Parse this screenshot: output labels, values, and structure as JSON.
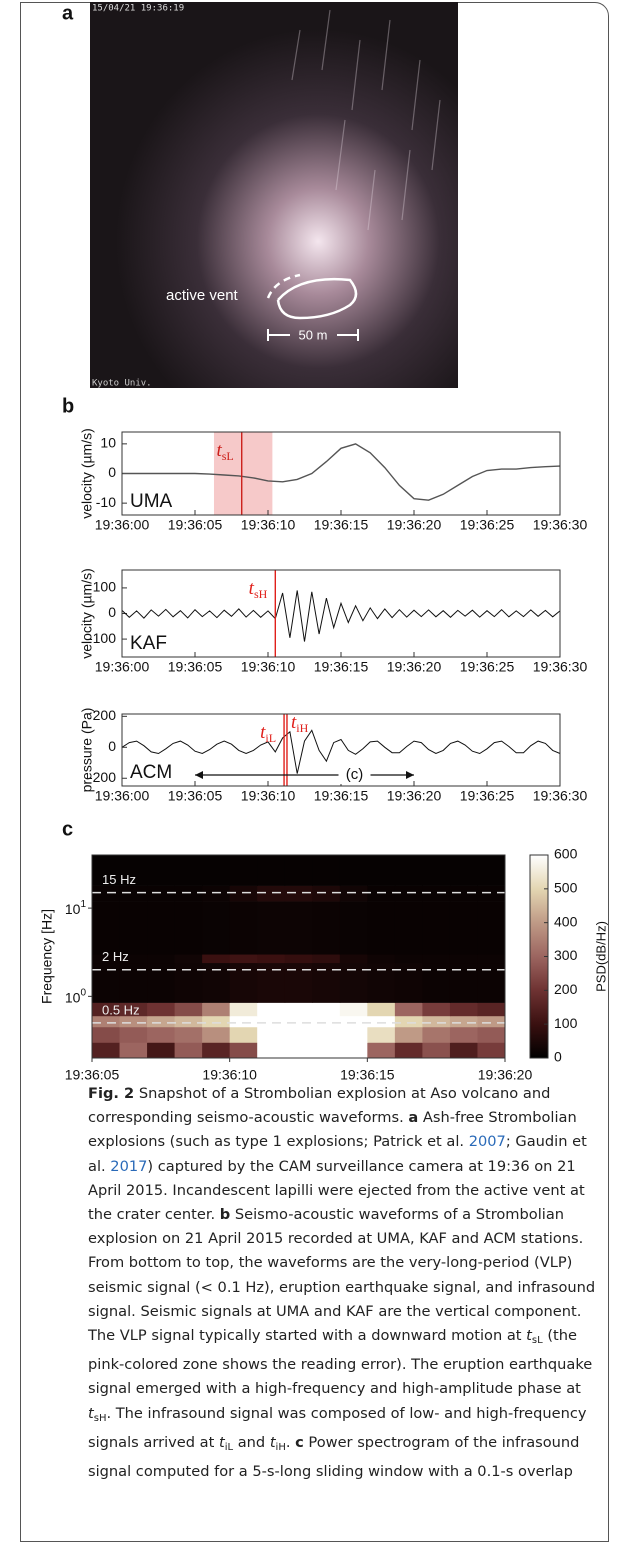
{
  "figure": {
    "panel_a": {
      "label": "a",
      "timestamp": "15/04/21 19:36:19",
      "credit": "Kyoto Univ.",
      "vent_label": "active vent",
      "scale_label": "50 m"
    },
    "panel_b": {
      "label": "b",
      "charts": [
        {
          "type": "line",
          "station": "UMA",
          "ylabel": "velocity (µm/s)",
          "color": "#555555",
          "xlim": [
            0,
            30
          ],
          "ylim": [
            -14,
            14
          ],
          "yticks": [
            10,
            0,
            -10
          ],
          "xticks": [
            {
              "value": 0,
              "label": "19:36:00"
            },
            {
              "value": 5,
              "label": "19:36:05"
            },
            {
              "value": 10,
              "label": "19:36:10"
            },
            {
              "value": 15,
              "label": "19:36:15"
            },
            {
              "value": 20,
              "label": "19:36:20"
            },
            {
              "value": 25,
              "label": "19:36:25"
            },
            {
              "value": 30,
              "label": "19:36:30"
            }
          ],
          "span": [
            6.3,
            10.3
          ],
          "span_color": "#f6c9c9",
          "markers": [
            {
              "x": 8.2,
              "color": "#cc1f1a",
              "main": "t",
              "sub": "sL"
            }
          ],
          "x": [
            0,
            1,
            2,
            3,
            4,
            5,
            6,
            7,
            8,
            9,
            10,
            11,
            12,
            13,
            14,
            15,
            16,
            17,
            18,
            19,
            20,
            21,
            22,
            23,
            24,
            25,
            26,
            27,
            28,
            29,
            30
          ],
          "values": [
            0,
            0,
            0,
            0,
            0,
            0,
            -0.2,
            -0.5,
            -0.8,
            -1.5,
            -2.5,
            -2.8,
            -2,
            0,
            4,
            8.5,
            10,
            7,
            2,
            -4,
            -8.5,
            -9,
            -7,
            -4,
            -1,
            1,
            1.5,
            1.5,
            2,
            2.3,
            2.5
          ]
        },
        {
          "type": "line",
          "station": "KAF",
          "ylabel": "velocity (µm/s)",
          "color": "#111111",
          "xlim": [
            0,
            30
          ],
          "ylim": [
            -170,
            170
          ],
          "yticks": [
            100,
            0,
            -100
          ],
          "xticks": [
            {
              "value": 0,
              "label": "19:36:00"
            },
            {
              "value": 5,
              "label": "19:36:05"
            },
            {
              "value": 10,
              "label": "19:36:10"
            },
            {
              "value": 15,
              "label": "19:36:15"
            },
            {
              "value": 20,
              "label": "19:36:20"
            },
            {
              "value": 25,
              "label": "19:36:25"
            },
            {
              "value": 30,
              "label": "19:36:30"
            }
          ],
          "markers": [
            {
              "x": 10.5,
              "color": "#e0201b",
              "main": "t",
              "sub": "sH"
            }
          ],
          "x": [
            0,
            0.5,
            1,
            1.5,
            2,
            2.5,
            3,
            3.5,
            4,
            4.5,
            5,
            5.5,
            6,
            6.5,
            7,
            7.5,
            8,
            8.5,
            9,
            9.5,
            10,
            10.5,
            11,
            11.5,
            12,
            12.5,
            13,
            13.5,
            14,
            14.5,
            15,
            15.5,
            16,
            16.5,
            17,
            17.5,
            18,
            18.5,
            19,
            19.5,
            20,
            20.5,
            21,
            21.5,
            22,
            22.5,
            23,
            23.5,
            24,
            24.5,
            25,
            25.5,
            26,
            26.5,
            27,
            27.5,
            28,
            28.5,
            29,
            29.5,
            30
          ],
          "values": [
            12,
            -15,
            10,
            -18,
            14,
            -10,
            16,
            -13,
            11,
            -17,
            15,
            -12,
            10,
            -16,
            13,
            -11,
            18,
            -14,
            12,
            -15,
            10,
            -20,
            80,
            -95,
            90,
            -110,
            85,
            -80,
            60,
            -55,
            40,
            -35,
            30,
            -28,
            22,
            -20,
            18,
            -16,
            15,
            -14,
            13,
            -12,
            14,
            -13,
            11,
            -15,
            12,
            -10,
            13,
            -14,
            11,
            -12,
            15,
            -13,
            10,
            -12,
            14,
            -11,
            12,
            -13,
            10
          ]
        },
        {
          "type": "line",
          "station": "ACM",
          "ylabel": "pressure (Pa)",
          "color": "#111111",
          "xlim": [
            0,
            30
          ],
          "ylim": [
            -250,
            215
          ],
          "yticks": [
            200,
            0,
            -200
          ],
          "xticks": [
            {
              "value": 0,
              "label": "19:36:00"
            },
            {
              "value": 5,
              "label": "19:36:05"
            },
            {
              "value": 10,
              "label": "19:36:10"
            },
            {
              "value": 15,
              "label": "19:36:15"
            },
            {
              "value": 20,
              "label": "19:36:20"
            },
            {
              "value": 25,
              "label": "19:36:25"
            },
            {
              "value": 30,
              "label": "19:36:30"
            }
          ],
          "markers": [
            {
              "x": 11.1,
              "color": "#e0201b",
              "main": "t",
              "sub": "iL"
            },
            {
              "x": 11.3,
              "color": "#e0201b",
              "main": "t",
              "sub": "iH"
            }
          ],
          "arrow": {
            "from": 5,
            "to": 20,
            "label": "(c)"
          },
          "x": [
            0,
            0.5,
            1,
            1.5,
            2,
            2.5,
            3,
            3.5,
            4,
            4.5,
            5,
            5.5,
            6,
            6.5,
            7,
            7.5,
            8,
            8.5,
            9,
            9.5,
            10,
            10.5,
            11,
            11.5,
            12,
            12.5,
            13,
            13.5,
            14,
            14.5,
            15,
            15.5,
            16,
            16.5,
            17,
            17.5,
            18,
            18.5,
            19,
            19.5,
            20,
            20.5,
            21,
            21.5,
            22,
            22.5,
            23,
            23.5,
            24,
            24.5,
            25,
            25.5,
            26,
            26.5,
            27,
            27.5,
            28,
            28.5,
            29,
            29.5,
            30
          ],
          "values": [
            0,
            30,
            40,
            10,
            -30,
            -40,
            -10,
            25,
            40,
            15,
            -25,
            -40,
            -15,
            20,
            40,
            20,
            -20,
            -40,
            -20,
            15,
            35,
            -30,
            60,
            100,
            -170,
            40,
            110,
            -20,
            -90,
            30,
            50,
            -20,
            -45,
            -10,
            35,
            40,
            0,
            -35,
            -35,
            5,
            40,
            30,
            -15,
            -40,
            -20,
            25,
            40,
            15,
            -25,
            -40,
            -10,
            30,
            40,
            5,
            -35,
            -35,
            10,
            40,
            25,
            -20,
            -40
          ]
        }
      ]
    },
    "panel_c": {
      "label": "c",
      "type": "heatmap",
      "ylabel": "Frequency [Hz]",
      "colorbar_label": "PSD(dB/Hz)",
      "xlim": [
        5,
        20
      ],
      "ylim": [
        0.2,
        40
      ],
      "log_y": true,
      "xticks": [
        {
          "value": 5,
          "label": "19:36:05"
        },
        {
          "value": 10,
          "label": "19:36:10"
        },
        {
          "value": 15,
          "label": "19:36:15"
        },
        {
          "value": 20,
          "label": "19:36:20"
        }
      ],
      "yticks": [
        {
          "value": 1,
          "label": "10",
          "exponent": "0"
        },
        {
          "value": 10,
          "label": "10",
          "exponent": "1"
        }
      ],
      "lines": [
        {
          "value": 15,
          "label": "15 Hz"
        },
        {
          "value": 2,
          "label": "2 Hz"
        },
        {
          "value": 0.5,
          "label": "0.5 Hz"
        }
      ],
      "time_edges": [
        5,
        6,
        7,
        8,
        9,
        10,
        11,
        12,
        13,
        14,
        15,
        16,
        17,
        18,
        19,
        20
      ],
      "freq_edges": [
        0.2,
        0.3,
        0.45,
        0.6,
        0.85,
        2.4,
        3.0,
        12,
        18,
        40
      ],
      "values": [
        [
          150,
          300,
          120,
          280,
          160,
          250,
          600,
          600,
          600,
          600,
          300,
          180,
          260,
          140,
          220
        ],
        [
          250,
          280,
          300,
          320,
          380,
          500,
          600,
          600,
          600,
          600,
          520,
          400,
          330,
          300,
          280
        ],
        [
          350,
          380,
          420,
          450,
          500,
          600,
          600,
          600,
          600,
          600,
          600,
          500,
          450,
          420,
          400
        ],
        [
          150,
          170,
          200,
          250,
          350,
          550,
          600,
          600,
          600,
          580,
          500,
          300,
          220,
          180,
          160
        ],
        [
          20,
          20,
          20,
          25,
          30,
          40,
          45,
          45,
          40,
          35,
          30,
          25,
          20,
          20,
          20
        ],
        [
          20,
          20,
          20,
          30,
          100,
          110,
          100,
          90,
          80,
          40,
          25,
          20,
          20,
          20,
          20
        ],
        [
          15,
          15,
          15,
          15,
          18,
          20,
          22,
          22,
          20,
          18,
          15,
          15,
          15,
          15,
          15
        ],
        [
          15,
          15,
          15,
          15,
          20,
          40,
          60,
          60,
          50,
          30,
          15,
          15,
          15,
          15,
          15
        ],
        [
          10,
          10,
          10,
          10,
          10,
          12,
          12,
          12,
          12,
          10,
          10,
          10,
          10,
          10,
          10
        ]
      ],
      "clim": [
        0,
        600
      ],
      "cticks": [
        0,
        100,
        200,
        300,
        400,
        500,
        600
      ],
      "colormap": [
        "#000000",
        "#3a1010",
        "#6e3232",
        "#9c6560",
        "#bf9a86",
        "#e3d6b2",
        "#ffffff"
      ]
    }
  },
  "caption": [
    {
      "text": "Fig. 2",
      "style": "bold"
    },
    {
      "text": "  Snapshot of a Strombolian explosion at Aso volcano and corresponding seismo-acoustic waveforms. ",
      "style": "plain"
    },
    {
      "text": "a",
      "style": "bold"
    },
    {
      "text": " Ash-free Strombolian explosions (such as type 1 explosions; Patrick et al. ",
      "style": "plain"
    },
    {
      "text": "2007",
      "style": "link"
    },
    {
      "text": "; Gaudin et al. ",
      "style": "plain"
    },
    {
      "text": "2017",
      "style": "link"
    },
    {
      "text": ") captured by the CAM surveillance camera at 19:36 on 21 April 2015. Incandescent lapilli were ejected from the active vent at the crater center. ",
      "style": "plain"
    },
    {
      "text": "b",
      "style": "bold"
    },
    {
      "text": " Seismo-acoustic waveforms of a Strombolian explosion on 21 April 2015 recorded at UMA, KAF and ACM stations. From bottom to top, the waveforms are the very-long-period (VLP) seismic signal (< 0.1 Hz), eruption earthquake signal, and infrasound signal. Seismic signals at UMA and KAF are the vertical component. The VLP signal typically started with a downward motion at ",
      "style": "plain"
    },
    {
      "text": "t",
      "style": "italic"
    },
    {
      "text": "sL",
      "style": "sub"
    },
    {
      "text": " (the pink-colored zone shows the reading error). The eruption earthquake signal emerged with a high-frequency and high-amplitude phase at ",
      "style": "plain"
    },
    {
      "text": "t",
      "style": "italic"
    },
    {
      "text": "sH",
      "style": "sub"
    },
    {
      "text": ". The infrasound signal was composed of low- and high-frequency signals arrived at ",
      "style": "plain"
    },
    {
      "text": "t",
      "style": "italic"
    },
    {
      "text": "iL",
      "style": "sub"
    },
    {
      "text": " and ",
      "style": "plain"
    },
    {
      "text": "t",
      "style": "italic"
    },
    {
      "text": "iH",
      "style": "sub"
    },
    {
      "text": ". ",
      "style": "plain"
    },
    {
      "text": "c",
      "style": "bold"
    },
    {
      "text": " Power spectrogram of the infrasound signal computed for a 5-s-long sliding window with a 0.1-s overlap",
      "style": "plain"
    }
  ]
}
